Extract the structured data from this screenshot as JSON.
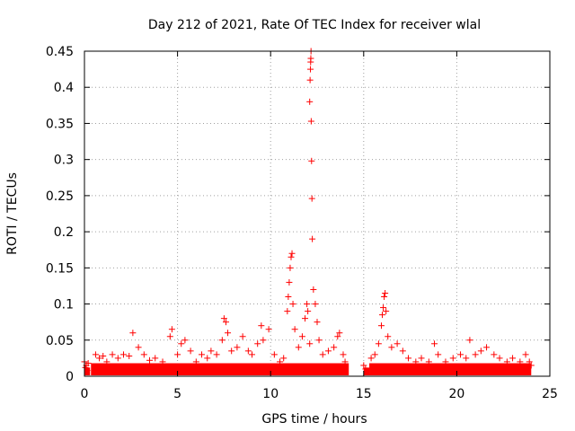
{
  "chart_data": {
    "type": "scatter",
    "title": "Day 212 of 2021, Rate Of TEC Index for receiver wlal",
    "xlabel": "GPS time / hours",
    "ylabel": "ROTI / TECUs",
    "xlim": [
      0,
      25
    ],
    "ylim": [
      0,
      0.45
    ],
    "xticks": [
      0,
      5,
      10,
      15,
      20,
      25
    ],
    "yticks": [
      0,
      0.05,
      0.1,
      0.15,
      0.2,
      0.25,
      0.3,
      0.35,
      0.4,
      0.45
    ],
    "xtick_labels": [
      "0",
      "5",
      "10",
      "15",
      "20",
      "25"
    ],
    "ytick_labels": [
      "0",
      "0.05",
      "0.1",
      "0.15",
      "0.2",
      "0.25",
      "0.3",
      "0.35",
      "0.4",
      "0.45"
    ],
    "grid": true,
    "marker": "plus",
    "marker_color": "#ff0000",
    "series": [
      {
        "name": "ROTI",
        "points": [
          [
            0.0,
            0.02
          ],
          [
            0.05,
            0.012
          ],
          [
            0.1,
            0.015
          ],
          [
            0.15,
            0.008
          ],
          [
            0.2,
            0.018
          ],
          [
            0.6,
            0.03
          ],
          [
            0.8,
            0.025
          ],
          [
            1.0,
            0.028
          ],
          [
            1.2,
            0.02
          ],
          [
            1.5,
            0.03
          ],
          [
            1.8,
            0.025
          ],
          [
            2.1,
            0.03
          ],
          [
            2.4,
            0.028
          ],
          [
            2.6,
            0.06
          ],
          [
            2.9,
            0.04
          ],
          [
            3.2,
            0.03
          ],
          [
            3.5,
            0.022
          ],
          [
            3.8,
            0.025
          ],
          [
            4.2,
            0.02
          ],
          [
            4.6,
            0.055
          ],
          [
            4.7,
            0.065
          ],
          [
            5.0,
            0.03
          ],
          [
            5.2,
            0.045
          ],
          [
            5.4,
            0.05
          ],
          [
            5.7,
            0.035
          ],
          [
            6.0,
            0.02
          ],
          [
            6.3,
            0.03
          ],
          [
            6.6,
            0.025
          ],
          [
            6.8,
            0.035
          ],
          [
            7.1,
            0.03
          ],
          [
            7.4,
            0.05
          ],
          [
            7.5,
            0.08
          ],
          [
            7.6,
            0.075
          ],
          [
            7.7,
            0.06
          ],
          [
            7.9,
            0.035
          ],
          [
            8.2,
            0.04
          ],
          [
            8.5,
            0.055
          ],
          [
            8.8,
            0.035
          ],
          [
            9.0,
            0.03
          ],
          [
            9.3,
            0.045
          ],
          [
            9.5,
            0.07
          ],
          [
            9.6,
            0.05
          ],
          [
            9.9,
            0.065
          ],
          [
            10.2,
            0.03
          ],
          [
            10.5,
            0.02
          ],
          [
            10.7,
            0.025
          ],
          [
            10.9,
            0.09
          ],
          [
            10.95,
            0.11
          ],
          [
            11.0,
            0.13
          ],
          [
            11.05,
            0.15
          ],
          [
            11.1,
            0.165
          ],
          [
            11.15,
            0.17
          ],
          [
            11.2,
            0.1
          ],
          [
            11.3,
            0.065
          ],
          [
            11.5,
            0.04
          ],
          [
            11.7,
            0.055
          ],
          [
            11.85,
            0.08
          ],
          [
            11.95,
            0.1
          ],
          [
            12.0,
            0.09
          ],
          [
            12.1,
            0.045
          ],
          [
            12.1,
            0.38
          ],
          [
            12.12,
            0.41
          ],
          [
            12.14,
            0.425
          ],
          [
            12.15,
            0.435
          ],
          [
            12.16,
            0.44
          ],
          [
            12.17,
            0.45
          ],
          [
            12.18,
            0.353
          ],
          [
            12.2,
            0.298
          ],
          [
            12.22,
            0.246
          ],
          [
            12.24,
            0.19
          ],
          [
            12.3,
            0.12
          ],
          [
            12.4,
            0.1
          ],
          [
            12.5,
            0.075
          ],
          [
            12.6,
            0.05
          ],
          [
            12.8,
            0.03
          ],
          [
            13.1,
            0.035
          ],
          [
            13.4,
            0.04
          ],
          [
            13.6,
            0.055
          ],
          [
            13.7,
            0.06
          ],
          [
            13.9,
            0.03
          ],
          [
            14.0,
            0.02
          ],
          [
            15.0,
            0.015
          ],
          [
            15.1,
            0.01
          ],
          [
            15.4,
            0.025
          ],
          [
            15.6,
            0.03
          ],
          [
            15.8,
            0.045
          ],
          [
            15.95,
            0.07
          ],
          [
            16.0,
            0.085
          ],
          [
            16.05,
            0.095
          ],
          [
            16.1,
            0.11
          ],
          [
            16.15,
            0.115
          ],
          [
            16.2,
            0.09
          ],
          [
            16.3,
            0.055
          ],
          [
            16.5,
            0.04
          ],
          [
            16.8,
            0.045
          ],
          [
            17.1,
            0.035
          ],
          [
            17.4,
            0.025
          ],
          [
            17.8,
            0.02
          ],
          [
            18.1,
            0.025
          ],
          [
            18.5,
            0.02
          ],
          [
            18.8,
            0.045
          ],
          [
            19.0,
            0.03
          ],
          [
            19.4,
            0.02
          ],
          [
            19.8,
            0.025
          ],
          [
            20.2,
            0.03
          ],
          [
            20.5,
            0.025
          ],
          [
            20.7,
            0.05
          ],
          [
            21.0,
            0.03
          ],
          [
            21.3,
            0.035
          ],
          [
            21.6,
            0.04
          ],
          [
            22.0,
            0.03
          ],
          [
            22.3,
            0.025
          ],
          [
            22.7,
            0.02
          ],
          [
            23.0,
            0.025
          ],
          [
            23.4,
            0.02
          ],
          [
            23.7,
            0.03
          ],
          [
            23.9,
            0.02
          ],
          [
            24.0,
            0.015
          ]
        ]
      }
    ]
  }
}
